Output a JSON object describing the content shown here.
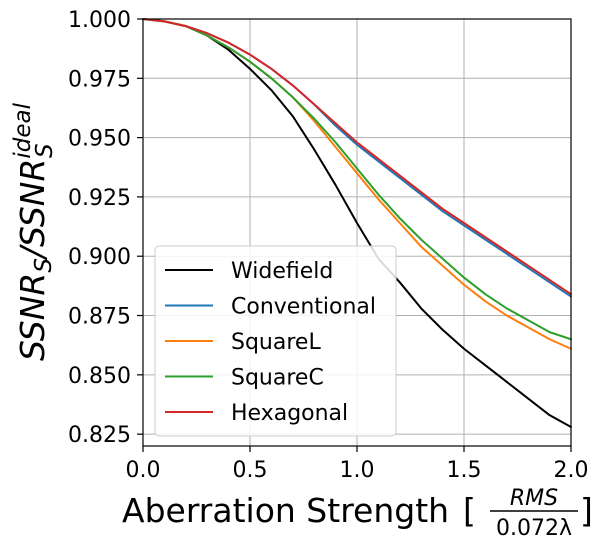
{
  "chart_data": {
    "type": "line",
    "title": "",
    "xlabel": "Aberration Strength",
    "xlabel_bracket_open": "[",
    "xlabel_bracket_close": "]",
    "xlabel_frac_num": "RMS",
    "xlabel_frac_den": "0.072λ",
    "ylabel_main1": "SSNR",
    "ylabel_sub1": "S",
    "ylabel_slash": "/SSNR",
    "ylabel_sup2": "ideal",
    "ylabel_sub2": "S",
    "xlim": [
      0.0,
      2.0
    ],
    "ylim": [
      0.82,
      1.0
    ],
    "xticks": [
      "0.0",
      "0.5",
      "1.0",
      "1.5",
      "2.0"
    ],
    "xtick_values": [
      0.0,
      0.5,
      1.0,
      1.5,
      2.0
    ],
    "yticks": [
      "0.825",
      "0.850",
      "0.875",
      "0.900",
      "0.925",
      "0.950",
      "0.975",
      "1.000"
    ],
    "ytick_values": [
      0.825,
      0.85,
      0.875,
      0.9,
      0.925,
      0.95,
      0.975,
      1.0
    ],
    "grid": true,
    "legend_position": "lower-left",
    "x": [
      0.0,
      0.1,
      0.2,
      0.3,
      0.4,
      0.5,
      0.6,
      0.7,
      0.8,
      0.9,
      1.0,
      1.1,
      1.2,
      1.3,
      1.4,
      1.5,
      1.6,
      1.7,
      1.8,
      1.9,
      2.0
    ],
    "series": [
      {
        "name": "Widefield",
        "color": "#000000",
        "values": [
          1.0,
          0.999,
          0.997,
          0.993,
          0.987,
          0.979,
          0.97,
          0.959,
          0.945,
          0.93,
          0.914,
          0.899,
          0.889,
          0.878,
          0.869,
          0.861,
          0.854,
          0.847,
          0.84,
          0.833,
          0.828
        ]
      },
      {
        "name": "Conventional",
        "color": "#1f77b4",
        "values": [
          1.0,
          0.999,
          0.997,
          0.994,
          0.99,
          0.985,
          0.979,
          0.972,
          0.964,
          0.955,
          0.947,
          0.94,
          0.933,
          0.926,
          0.919,
          0.913,
          0.907,
          0.901,
          0.895,
          0.889,
          0.883
        ]
      },
      {
        "name": "SquareL",
        "color": "#ff7f0e",
        "values": [
          1.0,
          0.999,
          0.997,
          0.993,
          0.988,
          0.982,
          0.975,
          0.967,
          0.957,
          0.946,
          0.935,
          0.924,
          0.914,
          0.904,
          0.896,
          0.888,
          0.881,
          0.875,
          0.87,
          0.865,
          0.861
        ]
      },
      {
        "name": "SquareC",
        "color": "#2ca02c",
        "values": [
          1.0,
          0.999,
          0.997,
          0.993,
          0.988,
          0.982,
          0.975,
          0.967,
          0.958,
          0.948,
          0.937,
          0.926,
          0.916,
          0.907,
          0.899,
          0.891,
          0.884,
          0.878,
          0.873,
          0.868,
          0.865
        ]
      },
      {
        "name": "Hexagonal",
        "color": "#d62728",
        "values": [
          1.0,
          0.999,
          0.997,
          0.994,
          0.99,
          0.985,
          0.979,
          0.972,
          0.964,
          0.956,
          0.948,
          0.941,
          0.934,
          0.927,
          0.92,
          0.914,
          0.908,
          0.902,
          0.896,
          0.89,
          0.884
        ]
      }
    ]
  }
}
